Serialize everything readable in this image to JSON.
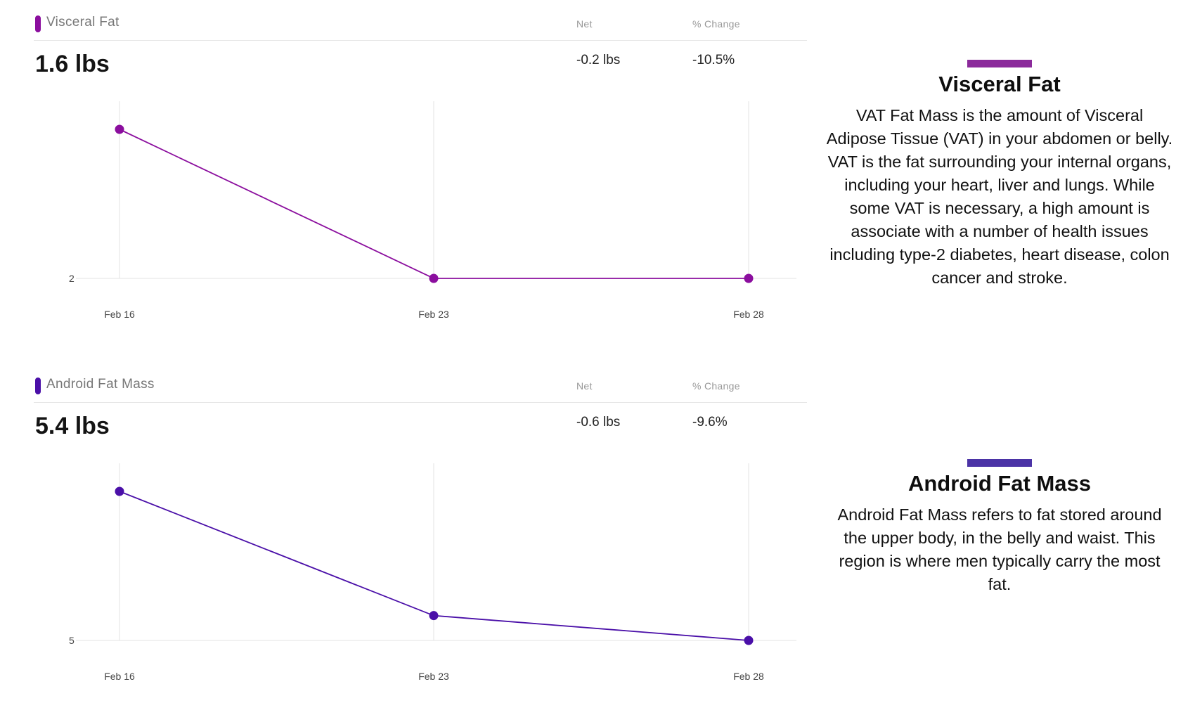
{
  "panels": [
    {
      "name": "Visceral Fat",
      "value": "1.6 lbs",
      "net_label": "Net",
      "pct_label": "% Change",
      "net": "-0.2 lbs",
      "pct": "-10.5%",
      "color": "#8b0e9e"
    },
    {
      "name": "Android Fat Mass",
      "value": "5.4 lbs",
      "net_label": "Net",
      "pct_label": "% Change",
      "net": "-0.6 lbs",
      "pct": "-9.6%",
      "color": "#4a0fa8"
    }
  ],
  "chart_data": [
    {
      "type": "line",
      "categories": [
        "Feb 16",
        "Feb 23",
        "Feb 28"
      ],
      "series": [
        {
          "values": [
            1.8,
            1.6,
            1.6
          ]
        }
      ],
      "y_tick_labels": [
        "2"
      ],
      "ylim": [
        1.55,
        1.85
      ],
      "grid": true,
      "color": "#8b0e9e"
    },
    {
      "type": "line",
      "categories": [
        "Feb 16",
        "Feb 23",
        "Feb 28"
      ],
      "series": [
        {
          "values": [
            6.0,
            5.5,
            5.4
          ]
        }
      ],
      "y_tick_labels": [
        "5"
      ],
      "ylim": [
        5.35,
        6.05
      ],
      "grid": true,
      "color": "#4a0fa8"
    }
  ],
  "sidebar": [
    {
      "title": "Visceral Fat",
      "text": "VAT Fat Mass is the amount of Visceral Adipose Tissue (VAT) in your abdomen or belly. VAT is the fat surrounding your internal organs, including your heart, liver and lungs. While some VAT is necessary, a high amount is associate with a number of health issues including type-2 diabetes, heart disease, colon cancer and stroke.",
      "bar_color": "#8b2a9b"
    },
    {
      "title": "Android Fat Mass",
      "text": "Android Fat Mass refers to fat stored around the upper body, in the belly and waist. This region is where men typically carry the most fat.",
      "bar_color": "#4b33a6"
    }
  ]
}
